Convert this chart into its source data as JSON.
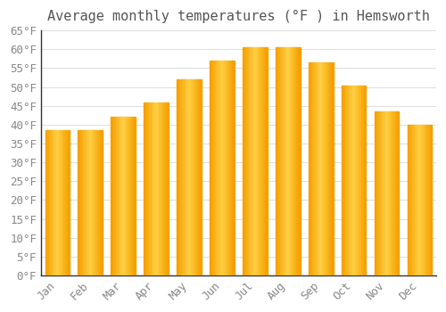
{
  "months": [
    "Jan",
    "Feb",
    "Mar",
    "Apr",
    "May",
    "Jun",
    "Jul",
    "Aug",
    "Sep",
    "Oct",
    "Nov",
    "Dec"
  ],
  "values": [
    38.5,
    38.5,
    42,
    46,
    52,
    57,
    60.5,
    60.5,
    56.5,
    50.5,
    43.5,
    40
  ],
  "bar_color_center": "#FFD045",
  "bar_color_edge": "#F5A000",
  "title": "Average monthly temperatures (°F ) in Hemsworth",
  "ylim": [
    0,
    65
  ],
  "yticks": [
    0,
    5,
    10,
    15,
    20,
    25,
    30,
    35,
    40,
    45,
    50,
    55,
    60,
    65
  ],
  "ytick_labels": [
    "0°F",
    "5°F",
    "10°F",
    "15°F",
    "20°F",
    "25°F",
    "30°F",
    "35°F",
    "40°F",
    "45°F",
    "50°F",
    "55°F",
    "60°F",
    "65°F"
  ],
  "background_color": "#ffffff",
  "grid_color": "#e0e0e0",
  "title_fontsize": 11,
  "tick_fontsize": 9,
  "tick_color": "#888888",
  "font_family": "monospace"
}
